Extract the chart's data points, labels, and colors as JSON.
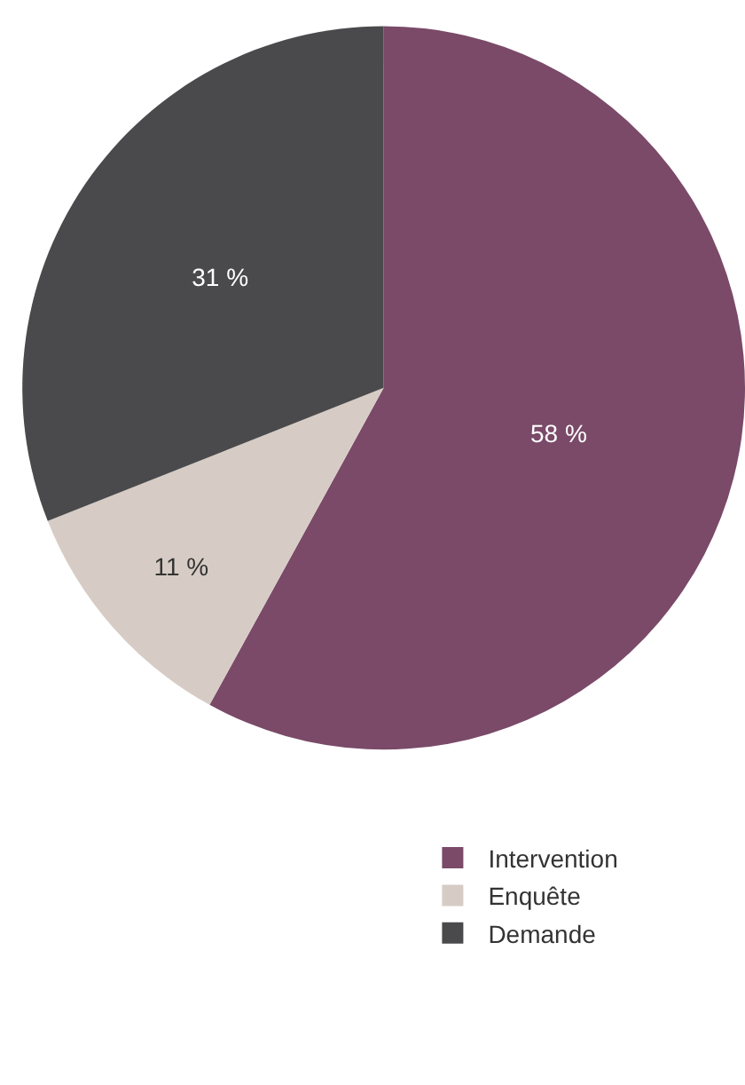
{
  "chart_data": {
    "type": "pie",
    "categories": [
      "Intervention",
      "Enquête",
      "Demande"
    ],
    "values": [
      58,
      11,
      31
    ],
    "colors": [
      "#7a4a68",
      "#d6ccc5",
      "#4a4a4c"
    ],
    "value_labels": [
      "58 %",
      "11 %",
      "31 %"
    ],
    "legend": "bottom right"
  }
}
